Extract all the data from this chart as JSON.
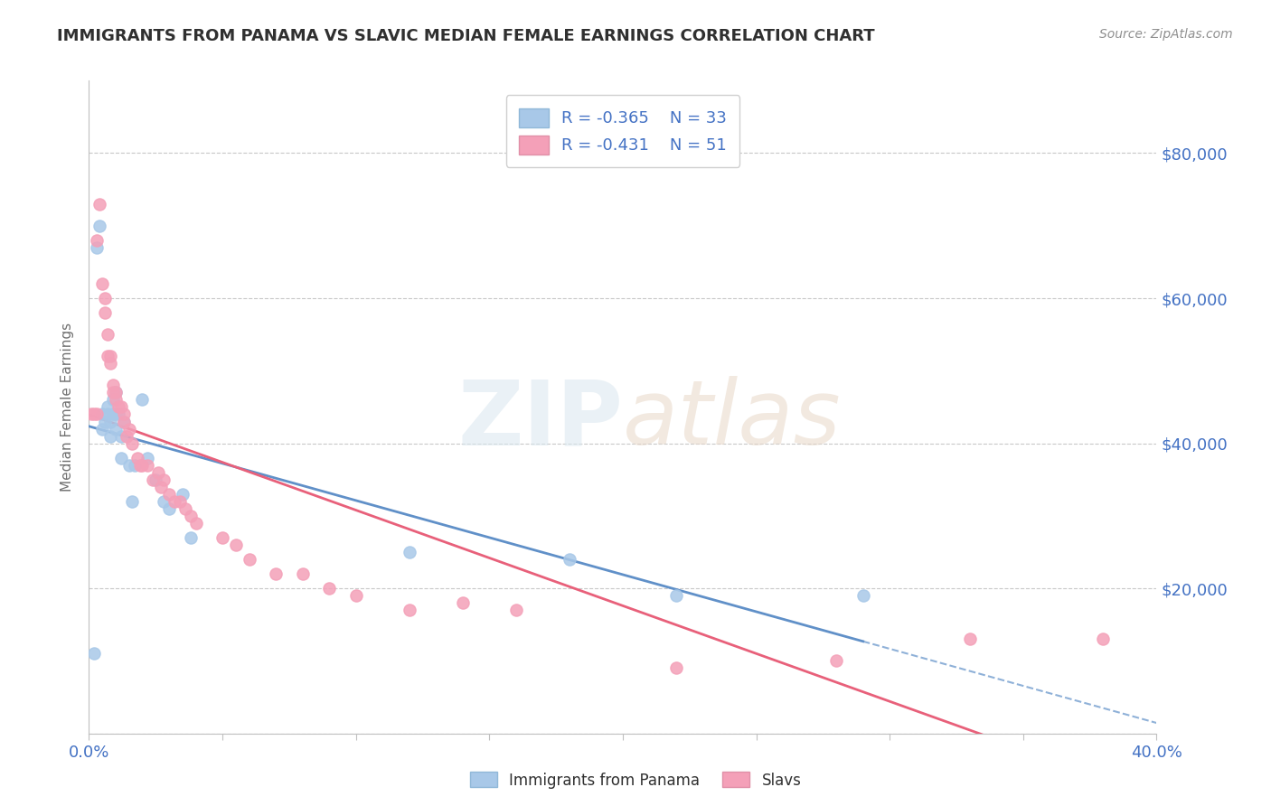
{
  "title": "IMMIGRANTS FROM PANAMA VS SLAVIC MEDIAN FEMALE EARNINGS CORRELATION CHART",
  "source": "Source: ZipAtlas.com",
  "ylabel": "Median Female Earnings",
  "xlim": [
    0.0,
    0.4
  ],
  "ylim": [
    0,
    90000
  ],
  "yticks": [
    0,
    20000,
    40000,
    60000,
    80000
  ],
  "xticks": [
    0.0,
    0.05,
    0.1,
    0.15,
    0.2,
    0.25,
    0.3,
    0.35,
    0.4
  ],
  "legend_r1": "R = -0.365",
  "legend_n1": "N = 33",
  "legend_r2": "R = -0.431",
  "legend_n2": "N = 51",
  "color_panama": "#a8c8e8",
  "color_slavs": "#f4a0b8",
  "color_panama_line": "#6090c8",
  "color_slavs_line": "#e8607a",
  "color_axis_blue": "#4472c4",
  "background": "#ffffff",
  "grid_color": "#c8c8c8",
  "panama_x": [
    0.002,
    0.003,
    0.004,
    0.005,
    0.005,
    0.006,
    0.007,
    0.007,
    0.008,
    0.008,
    0.009,
    0.009,
    0.01,
    0.01,
    0.01,
    0.011,
    0.012,
    0.012,
    0.013,
    0.015,
    0.016,
    0.017,
    0.02,
    0.022,
    0.025,
    0.028,
    0.03,
    0.035,
    0.038,
    0.12,
    0.18,
    0.22,
    0.29
  ],
  "panama_y": [
    11000,
    67000,
    70000,
    42000,
    44000,
    43000,
    44000,
    45000,
    41000,
    43000,
    44000,
    46000,
    42000,
    44000,
    47000,
    44000,
    38000,
    41000,
    43000,
    37000,
    32000,
    37000,
    46000,
    38000,
    35000,
    32000,
    31000,
    33000,
    27000,
    25000,
    24000,
    19000,
    19000
  ],
  "slavs_x": [
    0.001,
    0.002,
    0.003,
    0.003,
    0.004,
    0.005,
    0.006,
    0.006,
    0.007,
    0.007,
    0.008,
    0.008,
    0.009,
    0.009,
    0.01,
    0.01,
    0.011,
    0.012,
    0.013,
    0.013,
    0.014,
    0.015,
    0.016,
    0.018,
    0.019,
    0.02,
    0.022,
    0.024,
    0.026,
    0.027,
    0.028,
    0.03,
    0.032,
    0.034,
    0.036,
    0.038,
    0.04,
    0.05,
    0.055,
    0.06,
    0.07,
    0.08,
    0.09,
    0.1,
    0.12,
    0.14,
    0.16,
    0.22,
    0.28,
    0.33,
    0.38
  ],
  "slavs_y": [
    44000,
    44000,
    68000,
    44000,
    73000,
    62000,
    60000,
    58000,
    55000,
    52000,
    52000,
    51000,
    48000,
    47000,
    46000,
    47000,
    45000,
    45000,
    43000,
    44000,
    41000,
    42000,
    40000,
    38000,
    37000,
    37000,
    37000,
    35000,
    36000,
    34000,
    35000,
    33000,
    32000,
    32000,
    31000,
    30000,
    29000,
    27000,
    26000,
    24000,
    22000,
    22000,
    20000,
    19000,
    17000,
    18000,
    17000,
    9000,
    10000,
    13000,
    13000
  ]
}
